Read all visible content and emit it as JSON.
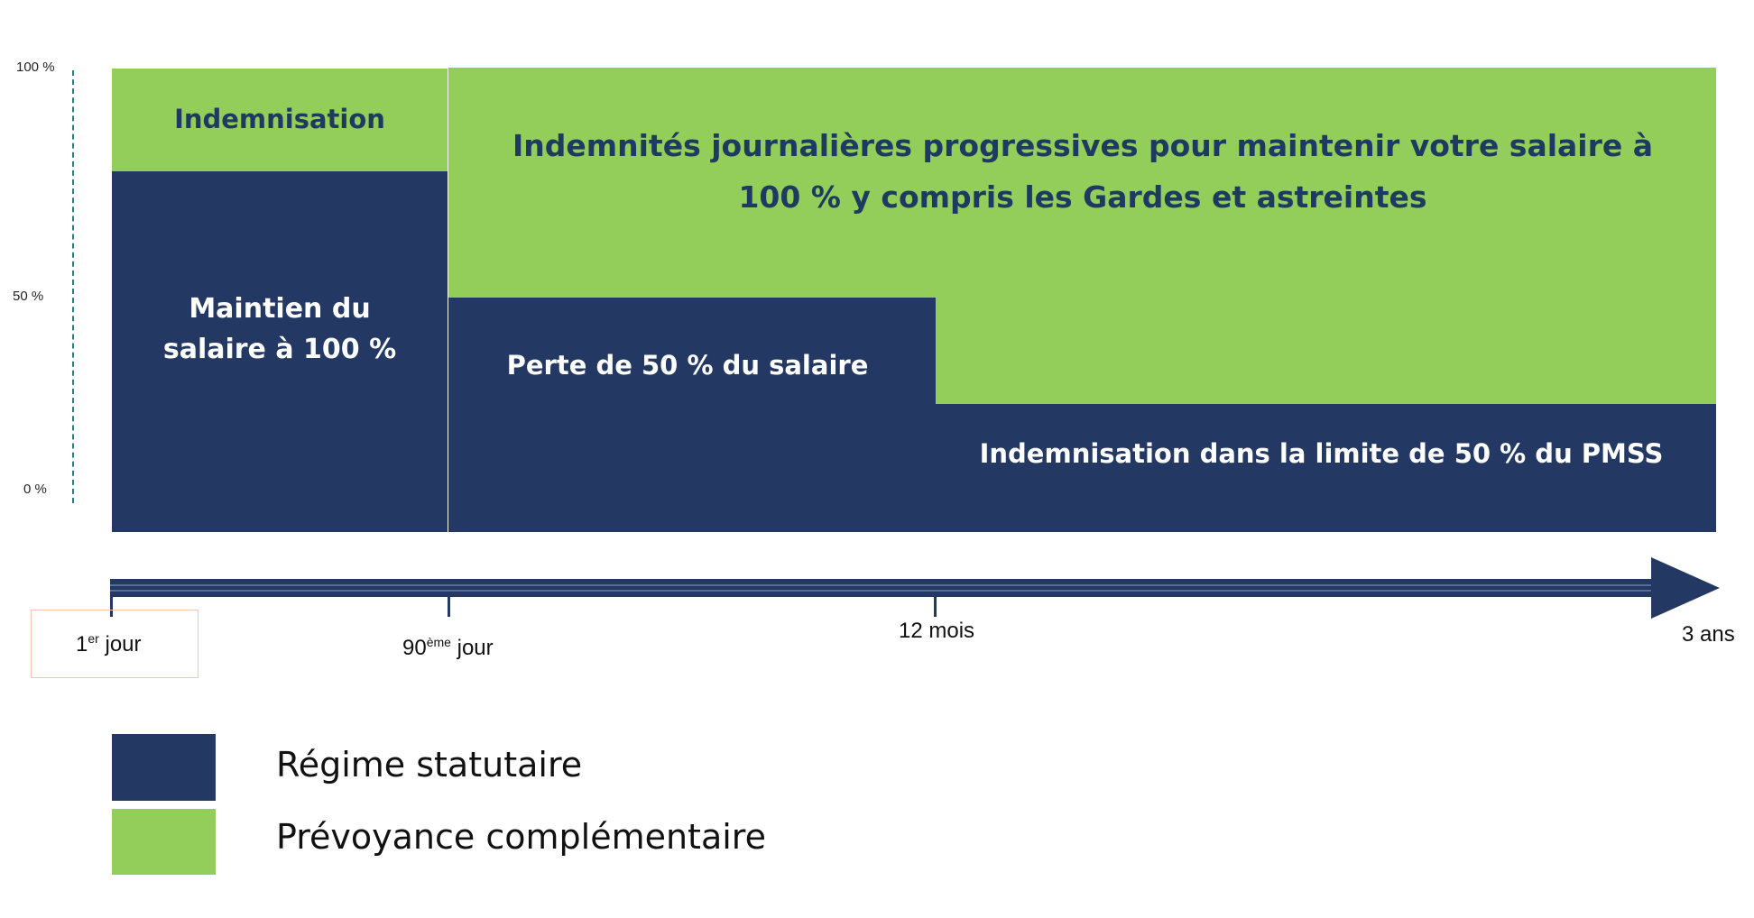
{
  "y_axis": {
    "ticks": [
      "100 %",
      "50 %",
      "0 %"
    ]
  },
  "blocks": {
    "indemnisation_top": "Indemnisation",
    "maintien_salaire": "Maintien du salaire à 100 %",
    "indemnites_progressives": "Indemnités journalières progressives pour maintenir votre salaire à 100 % y compris les Gardes et astreintes",
    "perte_50": "Perte de 50 % du salaire",
    "indemnisation_pmss": "Indemnisation dans la limite de 50 % du PMSS"
  },
  "timeline": {
    "day1_num": "1",
    "day1_sup": "er",
    "day1_word": " jour",
    "day90_num": "90",
    "day90_sup": "ème",
    "day90_word": " jour",
    "month12": "12 mois",
    "years3": "3 ans"
  },
  "legend": {
    "statutory": "Régime statutaire",
    "complementary": "Prévoyance complémentaire"
  },
  "colors": {
    "navy": "#233862",
    "green": "#92ce59",
    "text_navy": "#1f3a60"
  }
}
